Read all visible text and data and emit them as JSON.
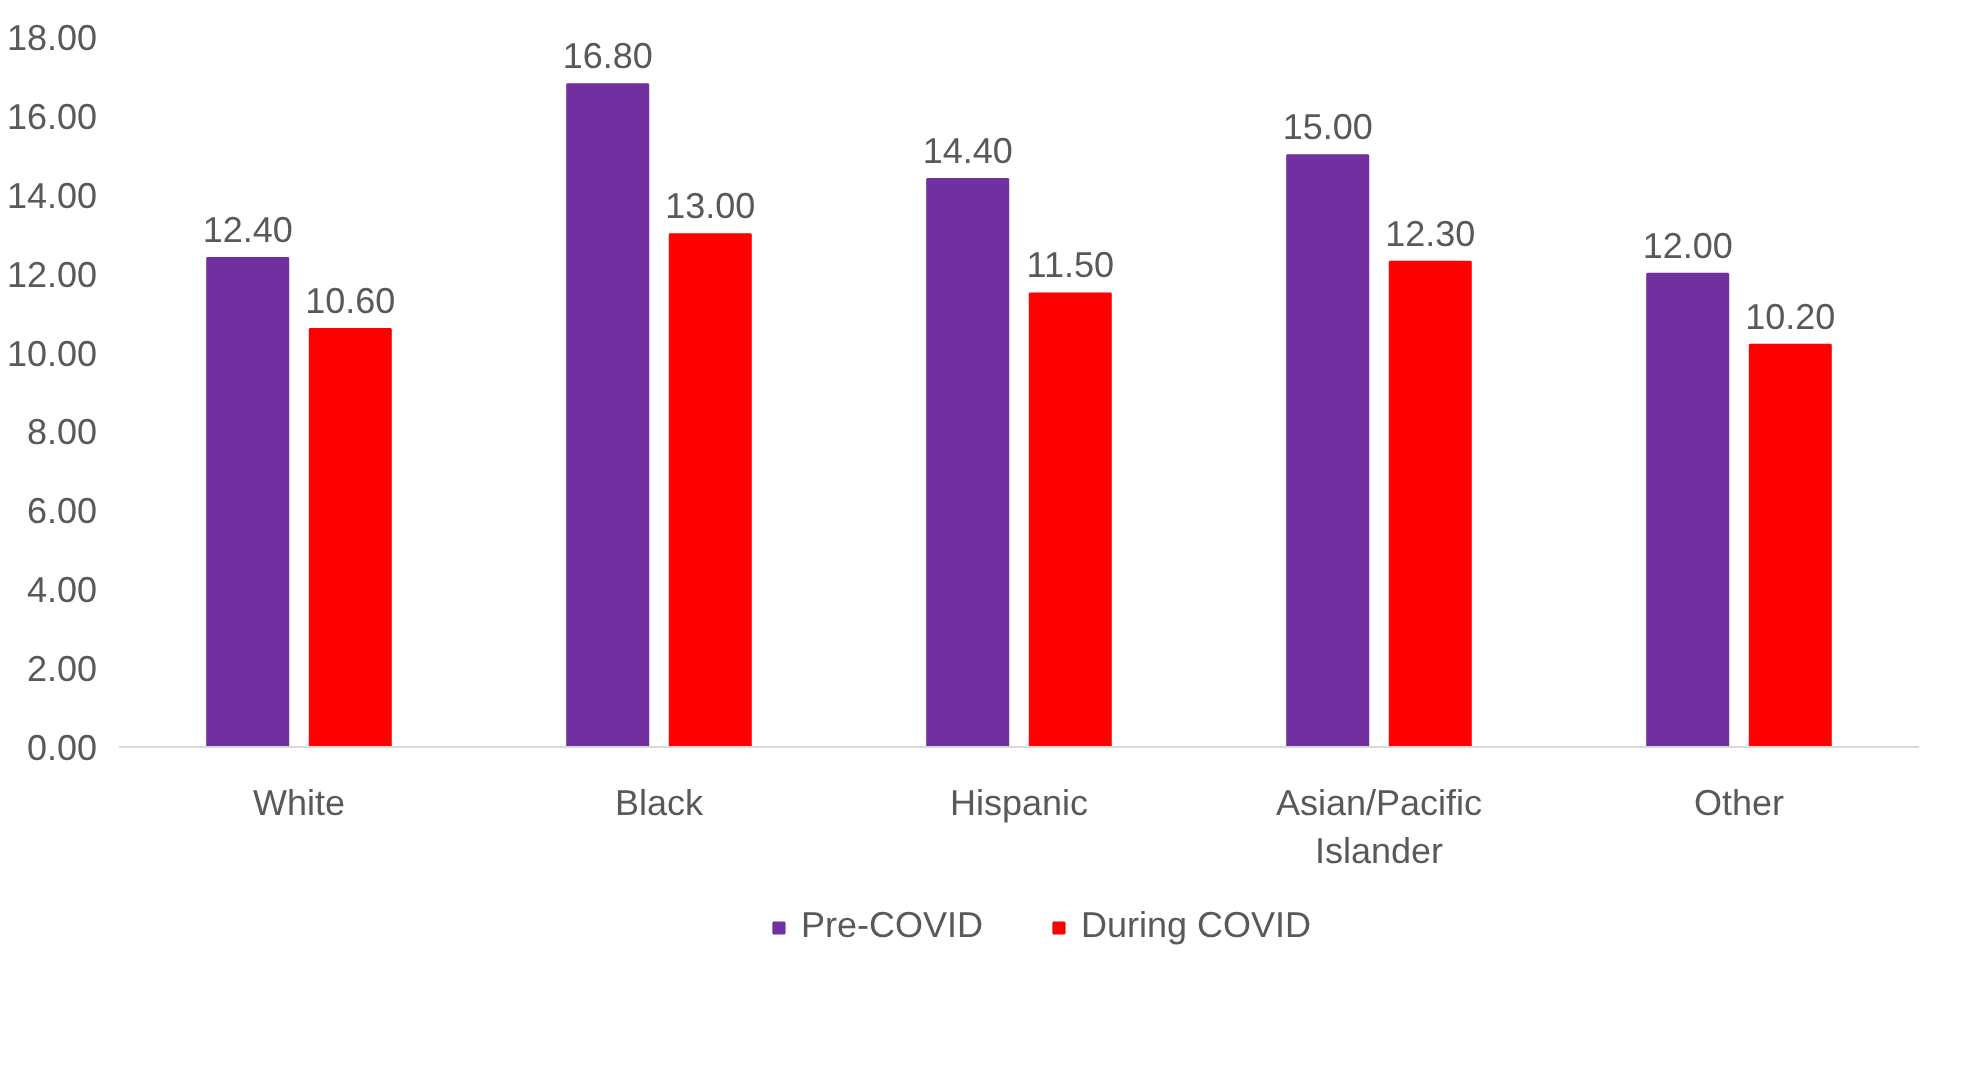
{
  "chart_data": {
    "type": "bar",
    "categories": [
      "White",
      "Black",
      "Hispanic",
      "Asian/Pacific Islander",
      "Other"
    ],
    "series": [
      {
        "name": "Pre-COVID",
        "color": "#7030a0",
        "values": [
          12.4,
          16.8,
          14.4,
          15.0,
          12.0
        ],
        "value_labels": [
          "12.40",
          "16.80",
          "14.40",
          "15.00",
          "12.00"
        ]
      },
      {
        "name": "During COVID",
        "color": "#ff0000",
        "values": [
          10.6,
          13.0,
          11.5,
          12.3,
          10.2
        ],
        "value_labels": [
          "10.60",
          "13.00",
          "11.50",
          "12.30",
          "10.20"
        ]
      }
    ],
    "ylim": [
      0,
      18
    ],
    "yticks": [
      {
        "value": 0,
        "label": "0.00"
      },
      {
        "value": 2,
        "label": "2.00"
      },
      {
        "value": 4,
        "label": "4.00"
      },
      {
        "value": 6,
        "label": "6.00"
      },
      {
        "value": 8,
        "label": "8.00"
      },
      {
        "value": 10,
        "label": "10.00"
      },
      {
        "value": 12,
        "label": "12.00"
      },
      {
        "value": 14,
        "label": "14.00"
      },
      {
        "value": 16,
        "label": "16.00"
      },
      {
        "value": 18,
        "label": "18.00"
      }
    ],
    "grid": false,
    "legend": "bottom"
  }
}
